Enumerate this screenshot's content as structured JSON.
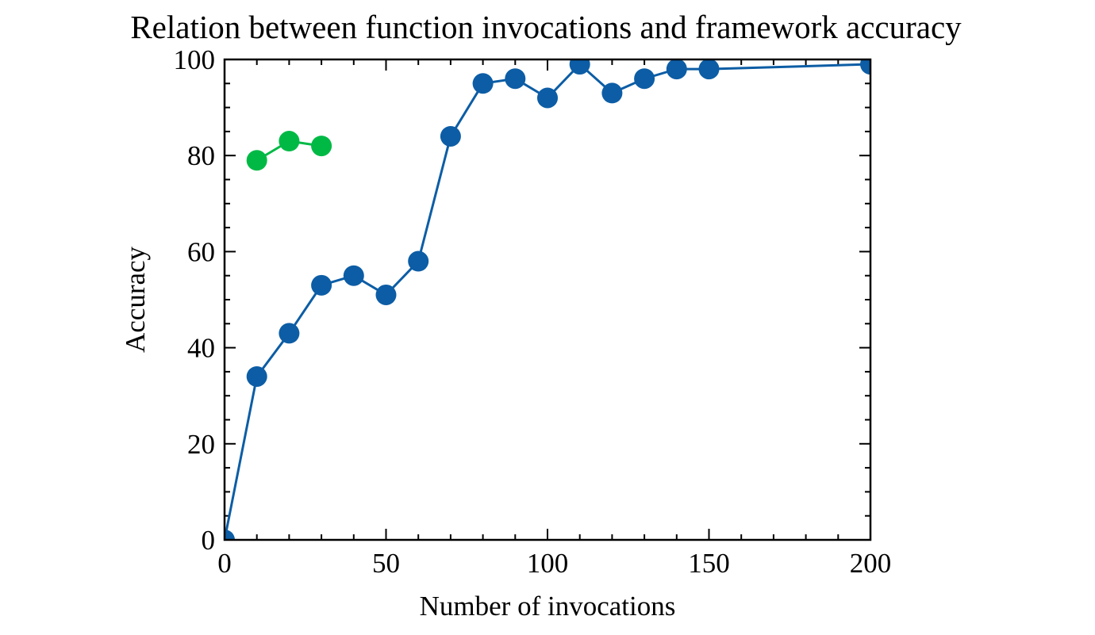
{
  "chart_data": {
    "type": "line",
    "title": "Relation between function invocations and framework accuracy",
    "xlabel": "Number of invocations",
    "ylabel": "Accuracy",
    "series": [
      {
        "color": "#0c5da5",
        "x": [
          0,
          10,
          20,
          30,
          40,
          50,
          60,
          70,
          80,
          90,
          100,
          110,
          120,
          130,
          140,
          150,
          200
        ],
        "values": [
          0,
          34,
          43,
          53,
          55,
          51,
          58,
          84,
          95,
          96,
          92,
          99,
          93,
          96,
          98,
          98,
          99
        ]
      },
      {
        "color": "#00b945",
        "x": [
          10,
          20,
          30
        ],
        "values": [
          79,
          83,
          82
        ]
      }
    ],
    "xlim": [
      0,
      200
    ],
    "ylim": [
      0,
      100
    ],
    "xticks": [
      0,
      50,
      100,
      150,
      200
    ],
    "yticks": [
      0,
      20,
      40,
      60,
      80,
      100
    ],
    "xminorticks": [
      10,
      20,
      30,
      40,
      60,
      70,
      80,
      90,
      110,
      120,
      130,
      140,
      160,
      170,
      180,
      190
    ],
    "yminorticks": [
      5,
      10,
      15,
      25,
      30,
      35,
      45,
      50,
      55,
      65,
      70,
      75,
      85,
      90,
      95
    ],
    "grid": false
  }
}
